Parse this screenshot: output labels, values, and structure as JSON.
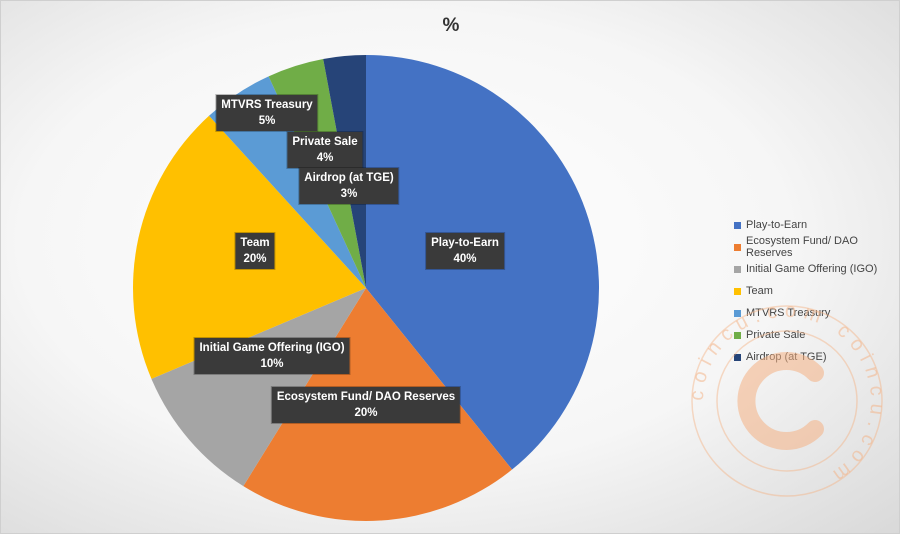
{
  "chart_data": {
    "type": "pie",
    "title": "%",
    "categories": [
      "Play-to-Earn",
      "Ecosystem Fund/ DAO Reserves",
      "Initial Game Offering (IGO)",
      "Team",
      "MTVRS Treasury",
      "Private Sale",
      "Airdrop (at TGE)"
    ],
    "values": [
      40,
      20,
      10,
      20,
      5,
      4,
      3
    ],
    "labels": [
      "40%",
      "20%",
      "10%",
      "20%",
      "5%",
      "4%",
      "3%"
    ],
    "colors": [
      "#4472C4",
      "#ED7D31",
      "#A5A5A5",
      "#FFC000",
      "#5B9BD5",
      "#70AD47",
      "#264478"
    ],
    "legend_position": "right",
    "start_angle_deg": 0,
    "direction": "clockwise"
  },
  "watermark": {
    "text": "coincu.com",
    "color": "#F4B183"
  }
}
